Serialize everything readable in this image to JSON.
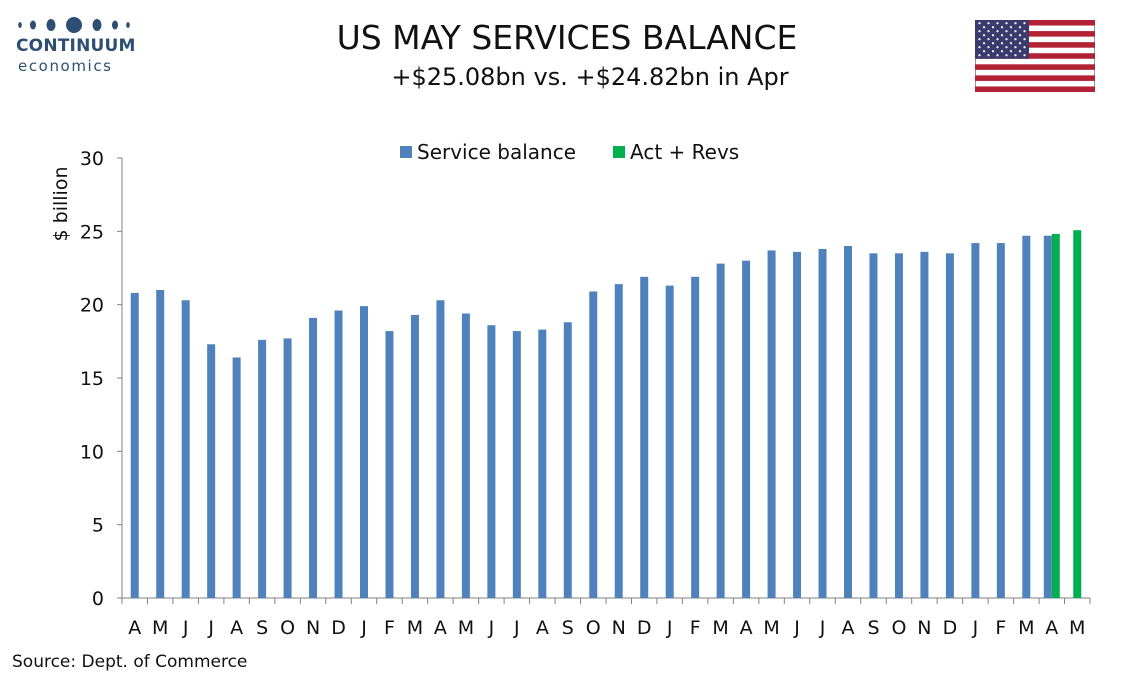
{
  "logo": {
    "word": "CONTINUUM",
    "sub": "economics"
  },
  "header": {
    "title": "US MAY SERVICES BALANCE",
    "subtitle": "+$25.08bn vs. +$24.82bn in Apr"
  },
  "footer": {
    "source": "Source: Dept. of Commerce"
  },
  "colors": {
    "series_blue": "#4f81bd",
    "series_green": "#00b050",
    "brand": "#2d4f73"
  },
  "flag": {
    "icon": "us-flag-icon"
  },
  "chart_data": {
    "type": "bar",
    "title": "",
    "xlabel": "",
    "ylabel": "$ billion",
    "ylim": [
      0,
      30
    ],
    "yticks": [
      0,
      5,
      10,
      15,
      20,
      25,
      30
    ],
    "grid": false,
    "legend_position": "top-center",
    "categories": [
      "A",
      "M",
      "J",
      "J",
      "A",
      "S",
      "O",
      "N",
      "D",
      "J",
      "F",
      "M",
      "A",
      "M",
      "J",
      "J",
      "A",
      "S",
      "O",
      "N",
      "D",
      "J",
      "F",
      "M",
      "A",
      "M",
      "J",
      "J",
      "A",
      "S",
      "O",
      "N",
      "D",
      "J",
      "F",
      "M",
      "A",
      "M"
    ],
    "series": [
      {
        "name": "Service balance",
        "values": [
          20.8,
          21.0,
          20.3,
          17.3,
          16.4,
          17.6,
          17.7,
          19.1,
          19.6,
          19.9,
          18.2,
          19.3,
          20.3,
          19.4,
          18.6,
          18.2,
          18.3,
          18.8,
          20.9,
          21.4,
          21.9,
          21.3,
          21.9,
          22.8,
          23.0,
          23.7,
          23.6,
          23.8,
          24.0,
          23.5,
          23.5,
          23.6,
          23.5,
          24.2,
          24.2,
          24.7,
          24.7,
          null
        ]
      },
      {
        "name": "Act + Revs",
        "values": [
          null,
          null,
          null,
          null,
          null,
          null,
          null,
          null,
          null,
          null,
          null,
          null,
          null,
          null,
          null,
          null,
          null,
          null,
          null,
          null,
          null,
          null,
          null,
          null,
          null,
          null,
          null,
          null,
          null,
          null,
          null,
          null,
          null,
          null,
          null,
          null,
          24.82,
          25.08
        ]
      }
    ]
  }
}
